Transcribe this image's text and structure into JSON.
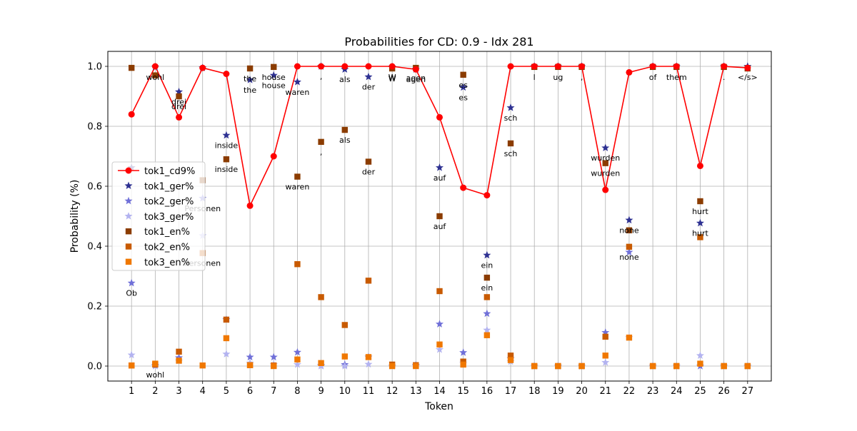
{
  "chart_data": {
    "type": "scatter",
    "title": "Probabilities for CD: 0.9 - Idx 281",
    "xlabel": "Token",
    "ylabel": "Probability (%)",
    "xlim": [
      0,
      28
    ],
    "ylim": [
      -0.05,
      1.05
    ],
    "xticks": [
      "1",
      "2",
      "3",
      "4",
      "5",
      "6",
      "7",
      "8",
      "9",
      "10",
      "11",
      "12",
      "13",
      "14",
      "15",
      "16",
      "17",
      "18",
      "19",
      "20",
      "21",
      "22",
      "23",
      "24",
      "25",
      "26",
      "27"
    ],
    "yticks": [
      "0.0",
      "0.2",
      "0.4",
      "0.6",
      "0.8",
      "1.0"
    ],
    "grid": true,
    "legend_position": "center-left",
    "series": [
      {
        "name": "tok1_cd9%",
        "marker": "line-circle",
        "color": "#ff0000",
        "values": [
          0.84,
          1.0,
          0.83,
          0.995,
          0.975,
          0.535,
          0.7,
          1.0,
          1.0,
          1.0,
          1.0,
          1.0,
          0.99,
          0.83,
          0.595,
          0.57,
          1.0,
          1.0,
          1.0,
          1.0,
          0.588,
          0.98,
          1.0,
          1.0,
          0.668,
          1.0,
          0.995
        ]
      },
      {
        "name": "tok1_ger%",
        "marker": "star",
        "color": "#2e3192",
        "values": [
          0.662,
          0.998,
          0.915,
          0.995,
          0.77,
          0.955,
          0.97,
          0.948,
          1.0,
          0.99,
          0.965,
          0.998,
          0.99,
          0.662,
          0.93,
          0.37,
          0.862,
          1.0,
          1.0,
          1.0,
          0.728,
          0.487,
          1.0,
          1.0,
          0.477,
          1.0,
          1.0
        ]
      },
      {
        "name": "tok2_ger%",
        "marker": "star",
        "color": "#7070d8",
        "values": [
          0.277,
          0.002,
          0.028,
          0.56,
          0.155,
          0.03,
          0.03,
          0.046,
          0.002,
          0.005,
          0.03,
          0.0,
          0.003,
          0.14,
          0.045,
          0.175,
          0.025,
          0.0,
          0.0,
          0.0,
          0.112,
          0.38,
          0.0,
          0.0,
          0.0,
          0.0,
          0.0
        ]
      },
      {
        "name": "tok3_ger%",
        "marker": "star",
        "color": "#b3b3f0",
        "values": [
          0.037,
          0.0,
          0.017,
          0.435,
          0.04,
          0.01,
          0.005,
          0.005,
          0.0,
          0.0,
          0.006,
          0.0,
          0.0,
          0.055,
          0.01,
          0.12,
          0.015,
          0.0,
          0.0,
          0.0,
          0.012,
          0.095,
          0.0,
          0.0,
          0.035,
          0.0,
          0.0
        ]
      },
      {
        "name": "tok1_en%",
        "marker": "square",
        "color": "#8b3c00",
        "values": [
          0.995,
          0.97,
          0.9,
          0.62,
          0.69,
          0.993,
          0.998,
          0.632,
          0.748,
          0.788,
          0.682,
          0.993,
          0.995,
          0.5,
          0.972,
          0.295,
          0.743,
          0.998,
          0.998,
          0.998,
          0.677,
          0.453,
          0.998,
          0.998,
          0.55,
          0.998,
          0.993
        ]
      },
      {
        "name": "tok2_en%",
        "marker": "square",
        "color": "#c85a00",
        "values": [
          0.002,
          0.005,
          0.048,
          0.377,
          0.155,
          0.003,
          0.002,
          0.34,
          0.23,
          0.137,
          0.285,
          0.005,
          0.003,
          0.25,
          0.015,
          0.23,
          0.035,
          0.0,
          0.0,
          0.0,
          0.098,
          0.398,
          0.0,
          0.0,
          0.43,
          0.0,
          0.0
        ]
      },
      {
        "name": "tok3_en%",
        "marker": "square",
        "color": "#f07800",
        "values": [
          0.002,
          0.008,
          0.018,
          0.002,
          0.093,
          0.003,
          0.0,
          0.022,
          0.01,
          0.032,
          0.03,
          0.0,
          0.0,
          0.072,
          0.005,
          0.103,
          0.02,
          0.0,
          0.0,
          0.0,
          0.035,
          0.095,
          0.0,
          0.0,
          0.008,
          0.0,
          0.0
        ]
      }
    ],
    "annotations": [
      {
        "text": "Ob",
        "x": 1,
        "y": 0.277
      },
      {
        "text": "wohl",
        "x": 2,
        "y": 0.998
      },
      {
        "text": "wohl",
        "x": 2,
        "y": 0.005
      },
      {
        "text": "drei",
        "x": 3,
        "y": 0.915
      },
      {
        "text": "drei",
        "x": 3,
        "y": 0.9
      },
      {
        "text": "Personen",
        "x": 4,
        "y": 0.56
      },
      {
        "text": "Personen",
        "x": 4,
        "y": 0.377
      },
      {
        "text": "inside",
        "x": 5,
        "y": 0.77
      },
      {
        "text": "inside",
        "x": 5,
        "y": 0.69
      },
      {
        "text": "the",
        "x": 6,
        "y": 0.993
      },
      {
        "text": "the",
        "x": 6,
        "y": 0.955
      },
      {
        "text": "house",
        "x": 7,
        "y": 0.998
      },
      {
        "text": "house",
        "x": 7,
        "y": 0.97
      },
      {
        "text": "waren",
        "x": 8,
        "y": 0.948
      },
      {
        "text": "waren",
        "x": 8,
        "y": 0.632
      },
      {
        "text": ",",
        "x": 9,
        "y": 1.0
      },
      {
        "text": ",",
        "x": 9,
        "y": 0.748
      },
      {
        "text": "als",
        "x": 10,
        "y": 0.99
      },
      {
        "text": "als",
        "x": 10,
        "y": 0.788
      },
      {
        "text": "der",
        "x": 11,
        "y": 0.965
      },
      {
        "text": "der",
        "x": 11,
        "y": 0.682
      },
      {
        "text": "W",
        "x": 12,
        "y": 0.998
      },
      {
        "text": "W",
        "x": 12,
        "y": 0.993
      },
      {
        "text": "agen",
        "x": 13,
        "y": 0.995
      },
      {
        "text": "agen",
        "x": 13,
        "y": 0.99
      },
      {
        "text": "auf",
        "x": 14,
        "y": 0.662
      },
      {
        "text": "auf",
        "x": 14,
        "y": 0.5
      },
      {
        "text": "es",
        "x": 15,
        "y": 0.972
      },
      {
        "text": "es",
        "x": 15,
        "y": 0.93
      },
      {
        "text": "ein",
        "x": 16,
        "y": 0.37
      },
      {
        "text": "ein",
        "x": 16,
        "y": 0.295
      },
      {
        "text": "sch",
        "x": 17,
        "y": 0.862
      },
      {
        "text": "sch",
        "x": 17,
        "y": 0.743
      },
      {
        "text": "l",
        "x": 18,
        "y": 0.998
      },
      {
        "text": "ug",
        "x": 19,
        "y": 0.998
      },
      {
        "text": ",",
        "x": 20,
        "y": 0.998
      },
      {
        "text": "wurden",
        "x": 21,
        "y": 0.728
      },
      {
        "text": "wurden",
        "x": 21,
        "y": 0.677
      },
      {
        "text": "none",
        "x": 22,
        "y": 0.487
      },
      {
        "text": "none",
        "x": 22,
        "y": 0.398
      },
      {
        "text": "of",
        "x": 23,
        "y": 0.998
      },
      {
        "text": "them",
        "x": 24,
        "y": 0.998
      },
      {
        "text": "hurt",
        "x": 25,
        "y": 0.55
      },
      {
        "text": "hurt",
        "x": 25,
        "y": 0.477
      },
      {
        "text": ".",
        "x": 26,
        "y": 0.998
      },
      {
        "text": "</s>",
        "x": 27,
        "y": 0.998
      }
    ]
  }
}
